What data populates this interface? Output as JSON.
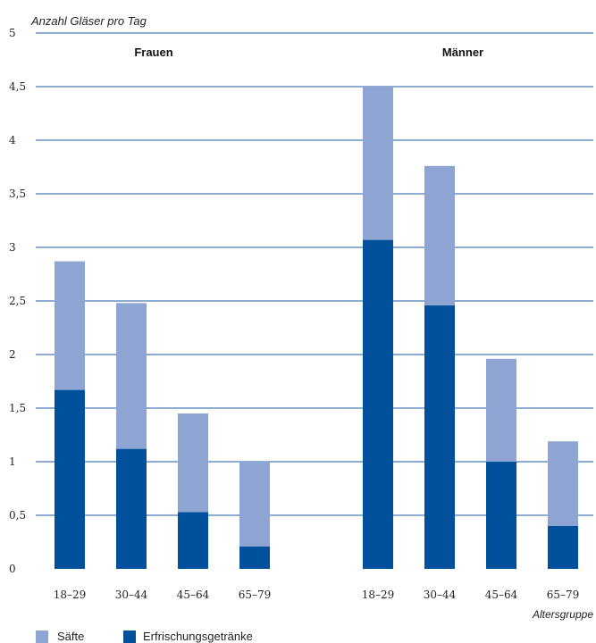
{
  "chart_data": {
    "type": "bar",
    "stacked": true,
    "ylabel": "Anzahl Gläser pro Tag",
    "xlabel": "Altersgruppe",
    "ylim": [
      0,
      5
    ],
    "yticks": [
      "0",
      "0,5",
      "1",
      "1,5",
      "2",
      "2,5",
      "3",
      "3,5",
      "4",
      "4,5",
      "5"
    ],
    "grid": true,
    "groups": [
      {
        "name": "Frauen",
        "categories": [
          "18–29",
          "30–44",
          "45–64",
          "65–79"
        ],
        "series": [
          {
            "name": "Erfrischungsgetränke",
            "values": [
              1.67,
              1.12,
              0.53,
              0.21
            ]
          },
          {
            "name": "Säfte",
            "values": [
              1.2,
              1.36,
              0.92,
              0.79
            ]
          }
        ]
      },
      {
        "name": "Männer",
        "categories": [
          "18–29",
          "30–44",
          "45–64",
          "65–79"
        ],
        "series": [
          {
            "name": "Erfrischungsgetränke",
            "values": [
              3.07,
              2.46,
              1.0,
              0.4
            ]
          },
          {
            "name": "Säfte",
            "values": [
              1.43,
              1.3,
              0.96,
              0.79
            ]
          }
        ]
      }
    ],
    "legend": [
      {
        "name": "Säfte",
        "color": "#8ea4d2"
      },
      {
        "name": "Erfrischungsgetränke",
        "color": "#00509c"
      }
    ],
    "legend_position": "bottom-left",
    "colors": {
      "dark": "#00509c",
      "light": "#8ea4d2",
      "grid": "#1c5aa6"
    }
  }
}
